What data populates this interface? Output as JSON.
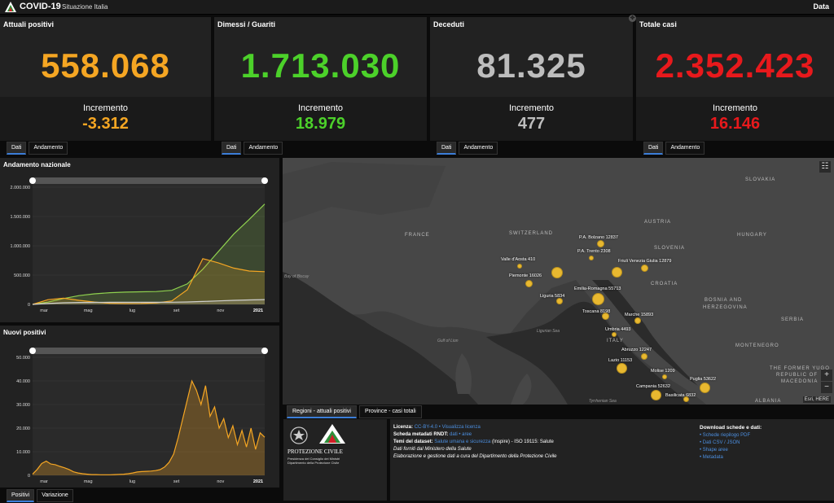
{
  "header": {
    "title": "COVID-19",
    "subtitle": "Situazione Italia",
    "date_label": "Data"
  },
  "cards": [
    {
      "title": "Attuali positivi",
      "value": "558.068",
      "inc_label": "Incremento",
      "inc_value": "-3.312",
      "color": "#f5a623"
    },
    {
      "title": "Dimessi / Guariti",
      "value": "1.713.030",
      "inc_label": "Incremento",
      "inc_value": "18.979",
      "color": "#4cd12a"
    },
    {
      "title": "Deceduti",
      "value": "81.325",
      "inc_label": "Incremento",
      "inc_value": "477",
      "color": "#bdbdbd"
    },
    {
      "title": "Totale casi",
      "value": "2.352.423",
      "inc_label": "Incremento",
      "inc_value": "16.146",
      "color": "#e8191c"
    }
  ],
  "card_tabs": {
    "tab1": "Dati",
    "tab2": "Andamento"
  },
  "chart_data": [
    {
      "type": "line",
      "title": "Andamento nazionale",
      "x_labels": [
        "mar",
        "mag",
        "lug",
        "set",
        "nov",
        "2021"
      ],
      "ylim": [
        0,
        2000000
      ],
      "y_ticks": [
        "0",
        "500.000",
        "1.000.000",
        "1.500.000",
        "2.000.000"
      ],
      "series": [
        {
          "color": "#8fd14f",
          "values": [
            0,
            40000,
            100000,
            150000,
            180000,
            200000,
            210000,
            215000,
            220000,
            240000,
            350000,
            600000,
            900000,
            1200000,
            1450000,
            1713030
          ]
        },
        {
          "color": "#f5a623",
          "values": [
            0,
            80000,
            105000,
            70000,
            40000,
            20000,
            14000,
            15000,
            25000,
            60000,
            250000,
            780000,
            710000,
            620000,
            570000,
            558068
          ]
        },
        {
          "color": "#cfcfcf",
          "values": [
            0,
            15000,
            28000,
            33000,
            35000,
            35500,
            35800,
            36000,
            36500,
            38000,
            42000,
            50000,
            60000,
            70000,
            76000,
            81325
          ]
        }
      ]
    },
    {
      "type": "area",
      "title": "Nuovi positivi",
      "x_labels": [
        "mar",
        "mag",
        "lug",
        "set",
        "nov",
        "2021"
      ],
      "ylim": [
        0,
        50000
      ],
      "y_ticks": [
        "0",
        "10.000",
        "20.000",
        "30.000",
        "40.000",
        "50.000"
      ],
      "series": [
        {
          "color": "#f5a623",
          "values": [
            500,
            2500,
            5000,
            6000,
            4800,
            4500,
            3800,
            3200,
            2500,
            1500,
            1000,
            700,
            500,
            300,
            300,
            250,
            250,
            250,
            300,
            400,
            500,
            700,
            1000,
            1400,
            1600,
            1700,
            1800,
            2000,
            2400,
            3500,
            5500,
            9000,
            16000,
            24000,
            32000,
            40000,
            36000,
            30000,
            38000,
            25000,
            29000,
            20000,
            24000,
            16000,
            21000,
            13000,
            19000,
            12000,
            20000,
            11000,
            18000,
            16146
          ]
        }
      ]
    }
  ],
  "chart1_tabs": {
    "tab1": "Positivi",
    "tab2": "Variazione"
  },
  "map": {
    "countries": [
      "FRANCE",
      "SWITZERLAND",
      "AUSTRIA",
      "SLOVENIA",
      "HUNGARY",
      "CROATIA",
      "BOSNIA AND",
      "HERZEGOVINA",
      "SERBIA",
      "MONTENEGRO",
      "SLOVAKIA",
      "ITALY",
      "THE FORMER YUGO",
      "REPUBLIC OF",
      "MACEDONIA",
      "ALBANIA"
    ],
    "seas": [
      "Bay of Biscay",
      "Gulf of Lion",
      "Ligurian Sea",
      "Tyrrhenian Sea"
    ],
    "regions": [
      {
        "name": "P.A. Bolzano 12837"
      },
      {
        "name": "P.A. Trento 2308"
      },
      {
        "name": "Valle d'Aosta 410"
      },
      {
        "name": "Friuli Venezia Giulia 12879"
      },
      {
        "name": "Piemonte 16026"
      },
      {
        "name": "Emilia-Romagna 55713"
      },
      {
        "name": "Liguria 5834"
      },
      {
        "name": "Toscana 8198"
      },
      {
        "name": "Marche 15893"
      },
      {
        "name": "Umbria 4493"
      },
      {
        "name": "Abruzzo 12247"
      },
      {
        "name": "Lazio 11153"
      },
      {
        "name": "Molise 1209"
      },
      {
        "name": "Puglia 53622"
      },
      {
        "name": "Campania 52632"
      },
      {
        "name": "Basilicata 6832"
      }
    ],
    "attribution": "Esri, HERE",
    "zoom_in": "+",
    "zoom_out": "−",
    "tab1": "Regioni - attuali positivi",
    "tab2": "Province - casi totali"
  },
  "footer": {
    "logo_line1": "PROTEZIONE CIVILE",
    "logo_line2": "Presidenza del Consiglio dei Ministri",
    "logo_line3": "Dipartimento della Protezione Civile",
    "lic_label": "Licenza:",
    "lic_link": "CC-BY-4.0 • Visualizza licenza",
    "meta_label": "Scheda metadati RNDT:",
    "meta_link": "dati • aree",
    "tema_label": "Temi del dataset:",
    "tema_link": "Salute umana e sicurezza",
    "tema_rest": "(Inspire) - ISO 19115: Salute",
    "line4": "Dati forniti dal Ministero della Salute",
    "line5": "Elaborazione e gestione dati a cura del Dipartimento della Protezione Civile",
    "dl_title": "Download schede e dati:",
    "dl_items": [
      "• Schede riepilogo PDF",
      "• Dati CSV / JSON",
      "• Shape aree",
      "• Metadata"
    ]
  }
}
